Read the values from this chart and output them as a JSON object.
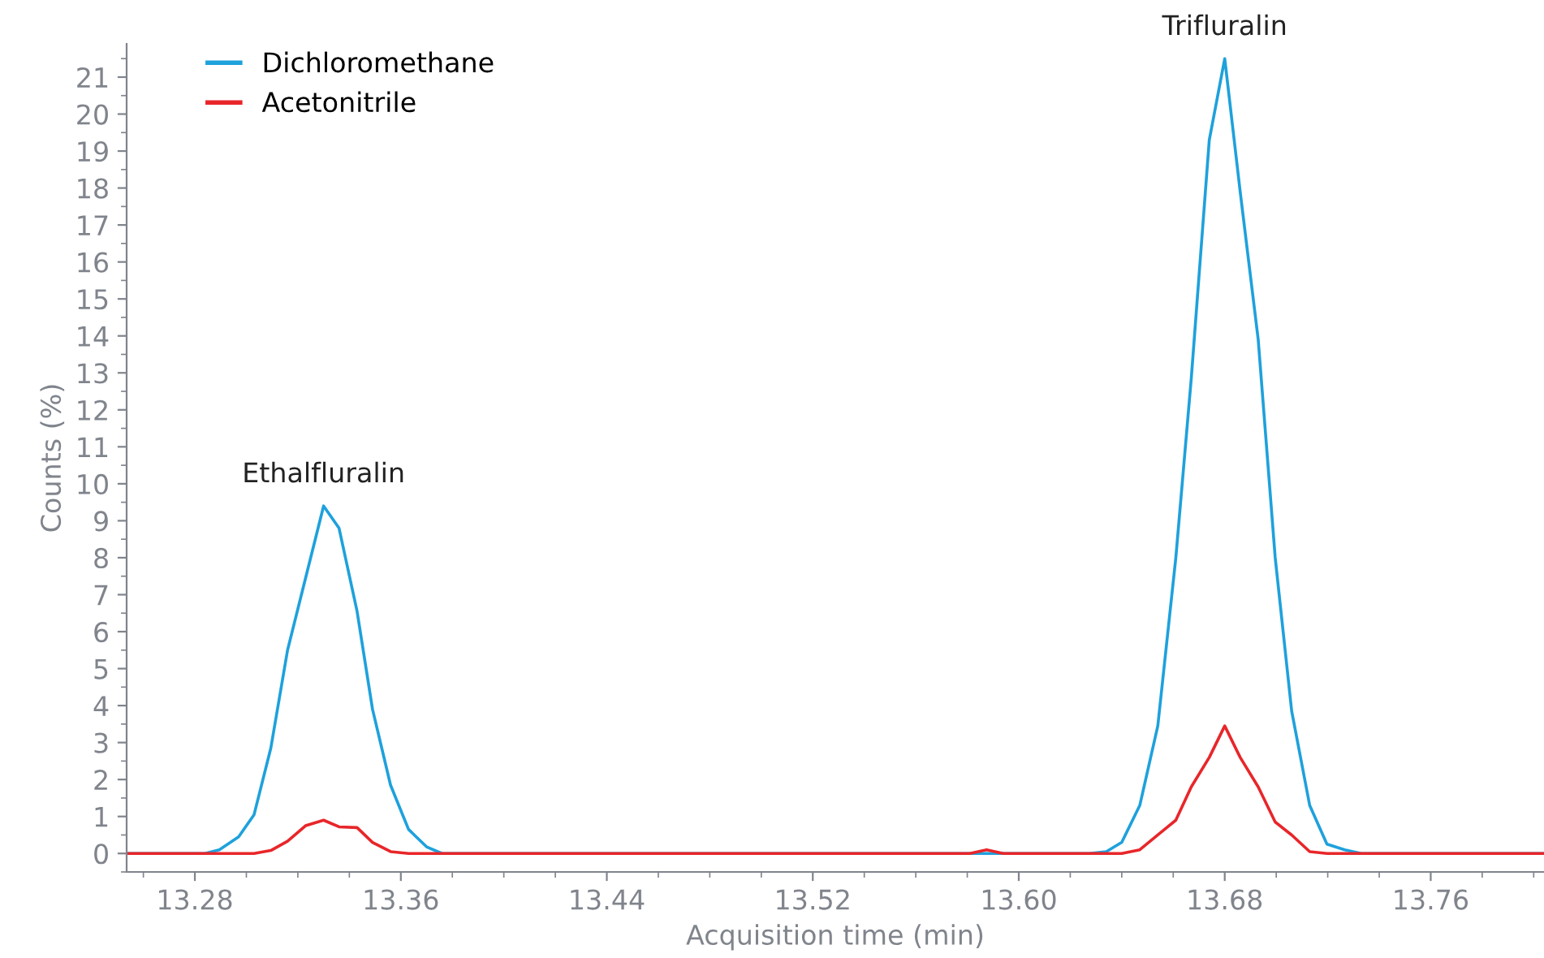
{
  "chart_data": {
    "type": "line",
    "xlabel": "Acquisition time (min)",
    "ylabel": "Counts (%)",
    "xlim": [
      13.2535,
      13.804
    ],
    "ylim": [
      -0.5,
      21.9
    ],
    "xticks": [
      {
        "value": 13.28,
        "label": "13.28"
      },
      {
        "value": 13.36,
        "label": "13.36"
      },
      {
        "value": 13.44,
        "label": "13.44"
      },
      {
        "value": 13.52,
        "label": "13.52"
      },
      {
        "value": 13.6,
        "label": "13.60"
      },
      {
        "value": 13.68,
        "label": "13.68"
      },
      {
        "value": 13.76,
        "label": "13.76"
      }
    ],
    "yticks": [
      0,
      1,
      2,
      3,
      4,
      5,
      6,
      7,
      8,
      9,
      10,
      11,
      12,
      13,
      14,
      15,
      16,
      17,
      18,
      19,
      20,
      21
    ],
    "legend": "top left",
    "grid": false,
    "annotations": [
      {
        "text": "Ethalfluralin",
        "x": 13.33,
        "y": 9.4
      },
      {
        "text": "Trifluralin",
        "x": 13.68,
        "y": 21.5
      }
    ],
    "series": [
      {
        "name": "Dichloromethane",
        "color": "#1ea1dc",
        "x": [
          13.2535,
          13.284,
          13.2895,
          13.297,
          13.303,
          13.3095,
          13.316,
          13.323,
          13.33,
          13.336,
          13.343,
          13.349,
          13.356,
          13.363,
          13.37,
          13.376,
          13.6274,
          13.634,
          13.64,
          13.647,
          13.654,
          13.661,
          13.667,
          13.674,
          13.68,
          13.686,
          13.693,
          13.6996,
          13.706,
          13.713,
          13.7197,
          13.7266,
          13.733,
          13.804
        ],
        "values": [
          0,
          0,
          0.1,
          0.45,
          1.05,
          2.85,
          5.5,
          7.45,
          9.4,
          8.8,
          6.55,
          3.9,
          1.85,
          0.65,
          0.18,
          0,
          0,
          0.05,
          0.3,
          1.3,
          3.45,
          8.0,
          12.85,
          19.3,
          21.5,
          17.9,
          13.9,
          8.0,
          3.85,
          1.3,
          0.25,
          0.1,
          0,
          0
        ]
      },
      {
        "name": "Acetonitrile",
        "color": "#e8262a",
        "x": [
          13.2535,
          13.303,
          13.3095,
          13.316,
          13.323,
          13.33,
          13.336,
          13.343,
          13.349,
          13.356,
          13.363,
          13.581,
          13.5875,
          13.594,
          13.64,
          13.647,
          13.654,
          13.661,
          13.667,
          13.674,
          13.68,
          13.686,
          13.693,
          13.6996,
          13.706,
          13.713,
          13.7197,
          13.804
        ],
        "values": [
          0,
          0,
          0.08,
          0.33,
          0.75,
          0.9,
          0.72,
          0.7,
          0.3,
          0.05,
          0,
          0,
          0.1,
          0,
          0,
          0.1,
          0.5,
          0.9,
          1.8,
          2.6,
          3.45,
          2.6,
          1.8,
          0.85,
          0.5,
          0.05,
          0,
          0
        ]
      }
    ]
  }
}
